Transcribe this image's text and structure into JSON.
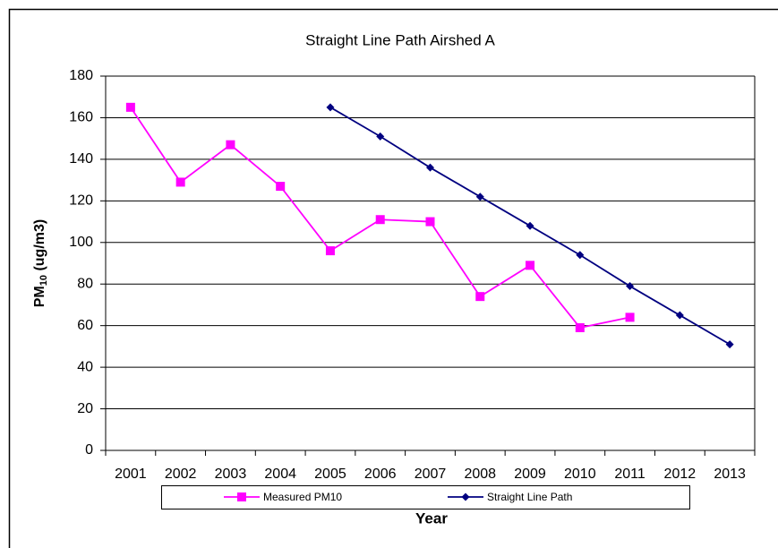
{
  "chart_data": {
    "type": "line",
    "title": "Straight Line Path Airshed A",
    "ylabel": {
      "main": "PM",
      "sub": "10",
      "rest": " (ug/m3)"
    },
    "xlabel": "Year",
    "categories": [
      "2001",
      "2002",
      "2003",
      "2004",
      "2005",
      "2006",
      "2007",
      "2008",
      "2009",
      "2010",
      "2011",
      "2012",
      "2013"
    ],
    "series": [
      {
        "name": "Measured PM10",
        "color": "#ff00ff",
        "marker": "square",
        "values": [
          165,
          129,
          147,
          127,
          96,
          111,
          110,
          74,
          89,
          59,
          64,
          null,
          null
        ]
      },
      {
        "name": "Straight Line Path",
        "color": "#000080",
        "marker": "diamond",
        "values": [
          null,
          null,
          null,
          null,
          165,
          151,
          136,
          122,
          108,
          94,
          79,
          65,
          51
        ]
      }
    ],
    "ylim": [
      0,
      180
    ],
    "yticks": [
      0,
      20,
      40,
      60,
      80,
      100,
      120,
      140,
      160,
      180
    ],
    "grid": true,
    "legend": "bottom"
  }
}
